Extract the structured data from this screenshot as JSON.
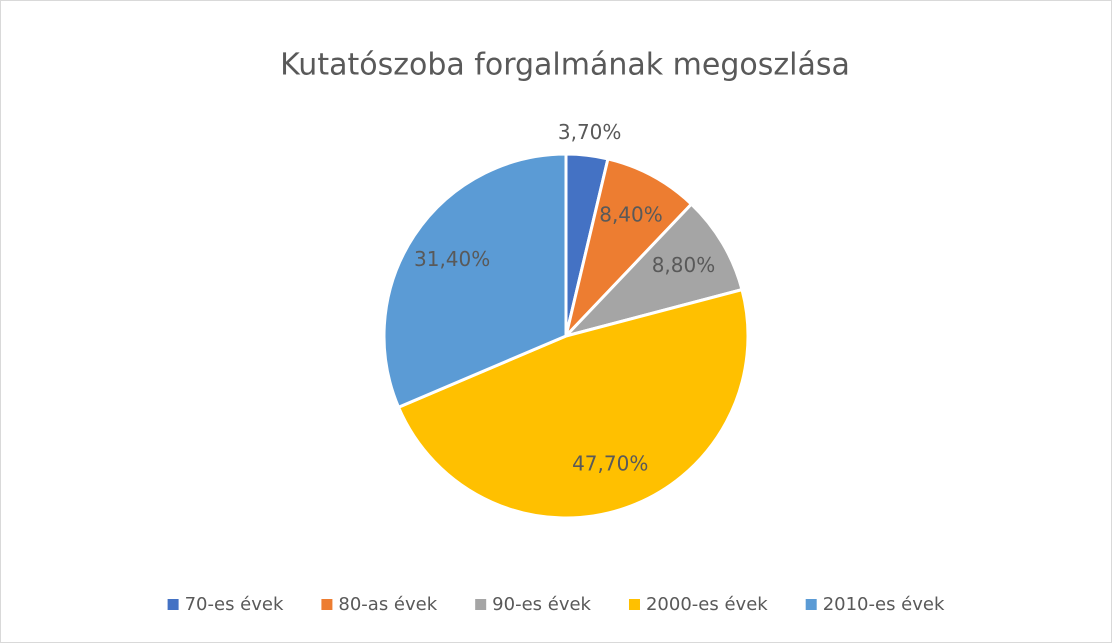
{
  "chart_data": {
    "type": "pie",
    "title": "Kutatószoba forgalmának megoszlása",
    "categories": [
      "70-es évek",
      "80-as évek",
      "90-es évek",
      "2000-es évek",
      "2010-es évek"
    ],
    "values": [
      3.7,
      8.4,
      8.8,
      47.7,
      31.4
    ],
    "value_labels": [
      "3,70%",
      "8,40%",
      "8,80%",
      "47,70%",
      "31,40%"
    ],
    "colors": [
      "#4472c4",
      "#ed7d31",
      "#a5a5a5",
      "#ffc000",
      "#5b9bd5"
    ],
    "legend": "bottom"
  }
}
